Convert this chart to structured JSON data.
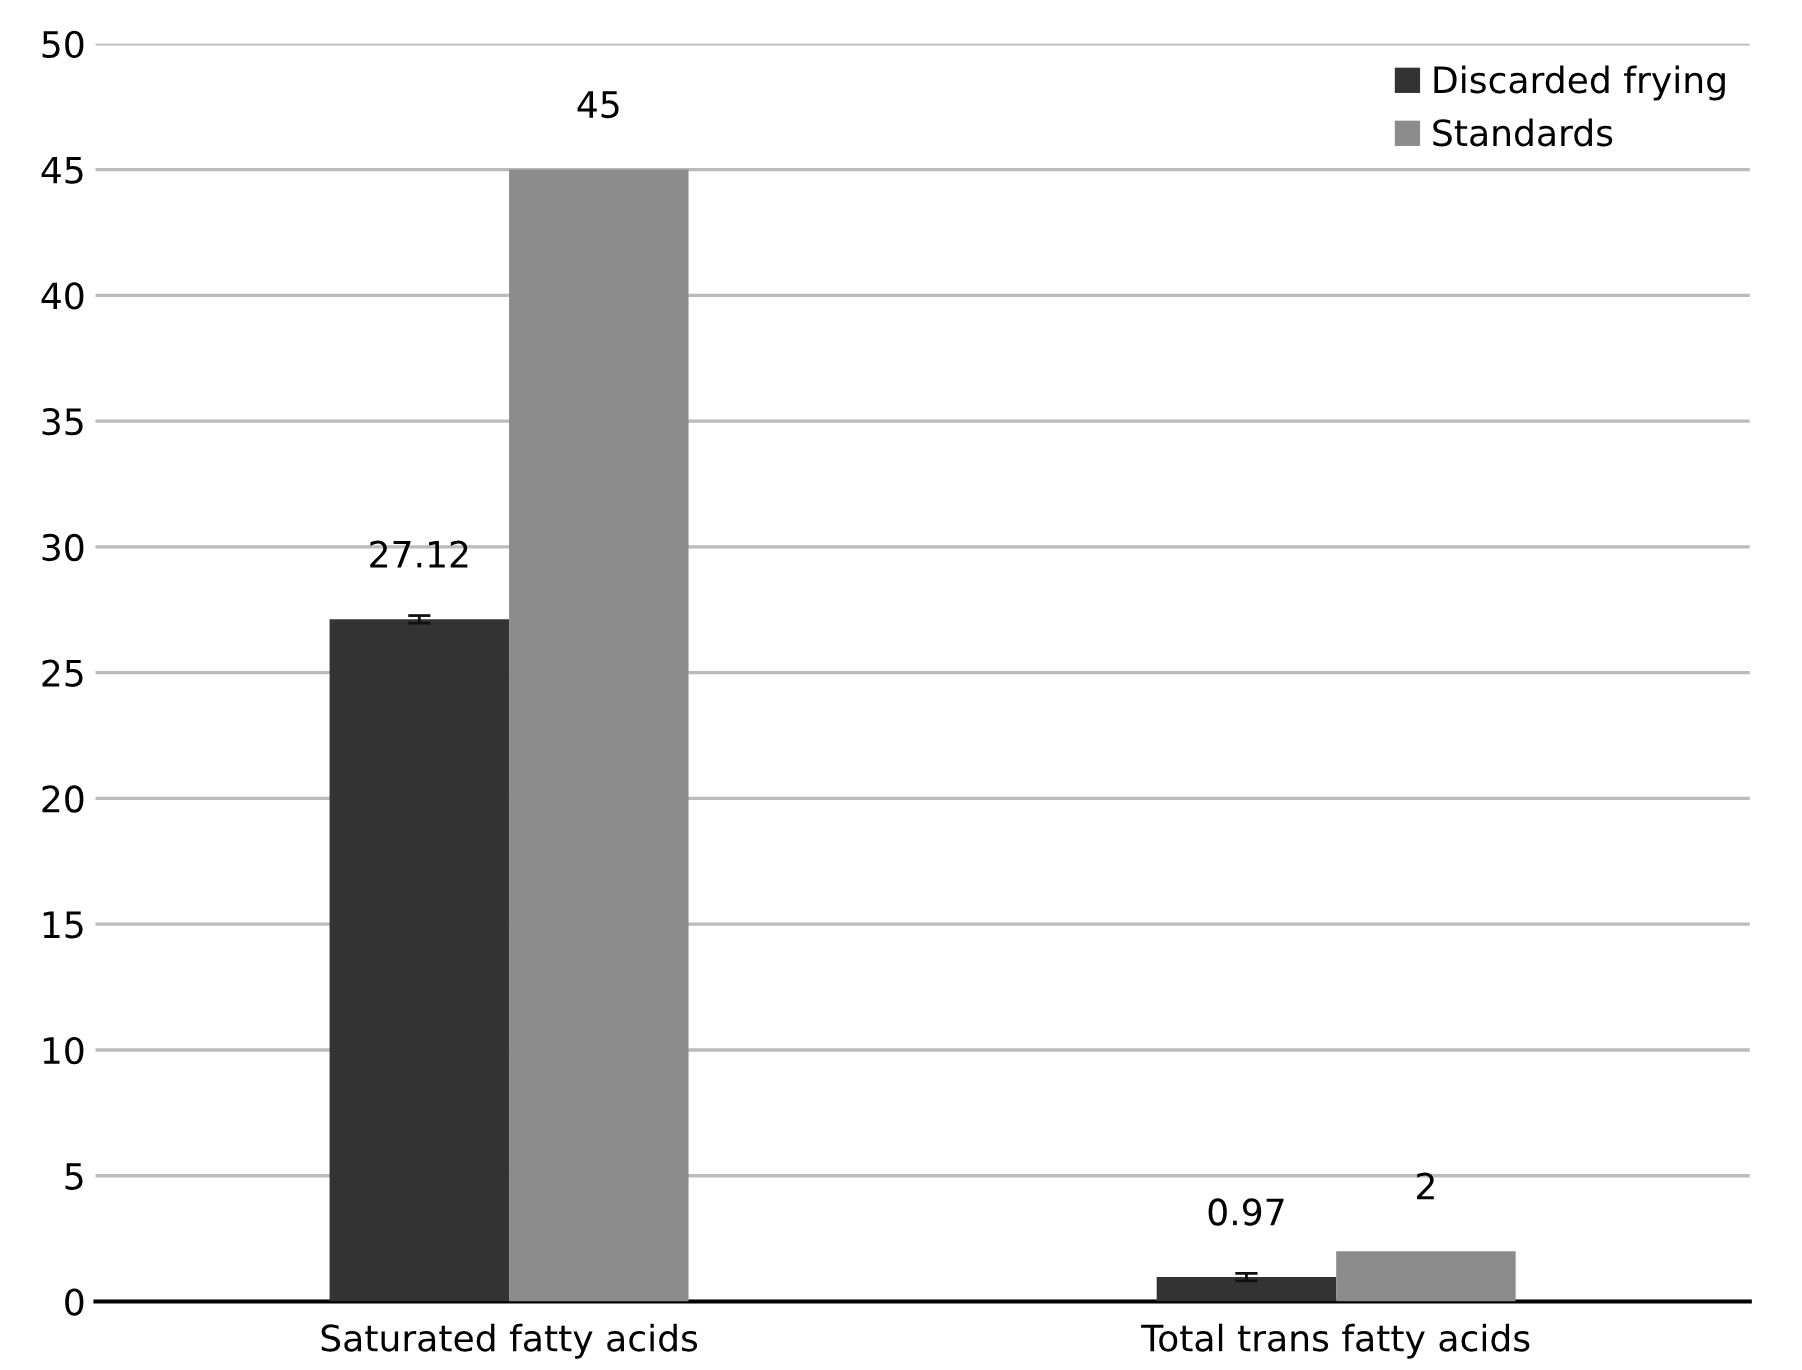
{
  "chart_data": {
    "type": "bar",
    "categories": [
      "Saturated fatty acids",
      "Total trans fatty acids"
    ],
    "series": [
      {
        "name": "Discarded frying",
        "color": "#333333",
        "values": [
          27.12,
          0.97
        ],
        "errors": [
          0.15,
          0.15
        ]
      },
      {
        "name": "Standards",
        "color": "#8c8c8c",
        "values": [
          45,
          2
        ]
      }
    ],
    "ylim": [
      0,
      50
    ],
    "yticks": [
      0,
      5,
      10,
      15,
      20,
      25,
      30,
      35,
      40,
      45,
      50
    ],
    "grid": "y",
    "legend": "top right",
    "data_labels": true
  }
}
